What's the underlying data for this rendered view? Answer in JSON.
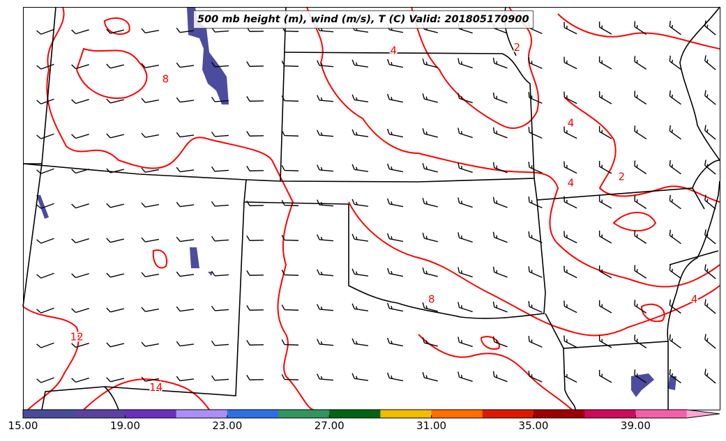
{
  "title": "500 mb height (m), wind (m/s), T (C) Valid: 201805170900",
  "contour_labels": [
    {
      "text": "4",
      "lon": -96.8,
      "lat": 40.0
    },
    {
      "text": "2",
      "lon": -92.9,
      "lat": 40.1
    },
    {
      "text": "8",
      "lon": -104.0,
      "lat": 39.1
    },
    {
      "text": "4",
      "lon": -91.2,
      "lat": 37.7
    },
    {
      "text": "4",
      "lon": -91.2,
      "lat": 35.8
    },
    {
      "text": "2",
      "lon": -89.6,
      "lat": 36.0
    },
    {
      "text": "8",
      "lon": -95.6,
      "lat": 32.1
    },
    {
      "text": "4",
      "lon": -87.3,
      "lat": 32.1
    },
    {
      "text": "12",
      "lon": -106.8,
      "lat": 30.9
    },
    {
      "text": "14",
      "lon": -104.3,
      "lat": 29.3
    }
  ],
  "colorbar": {
    "colors": [
      "#474b98",
      "#5a43a0",
      "#6b2fbc",
      "#ab8ff8",
      "#2f6fe6",
      "#31965e",
      "#046414",
      "#f0be00",
      "#ff6e00",
      "#de1800",
      "#9c0000",
      "#cc0b5a",
      "#f75eaa",
      "#fba6d2"
    ],
    "tick_labels": [
      "15.00",
      "19.00",
      "23.00",
      "27.00",
      "31.00",
      "35.00",
      "39.00"
    ]
  },
  "colors": {
    "contour": "#ff0000",
    "border": "#000000",
    "precip": "#4c4c9e"
  }
}
